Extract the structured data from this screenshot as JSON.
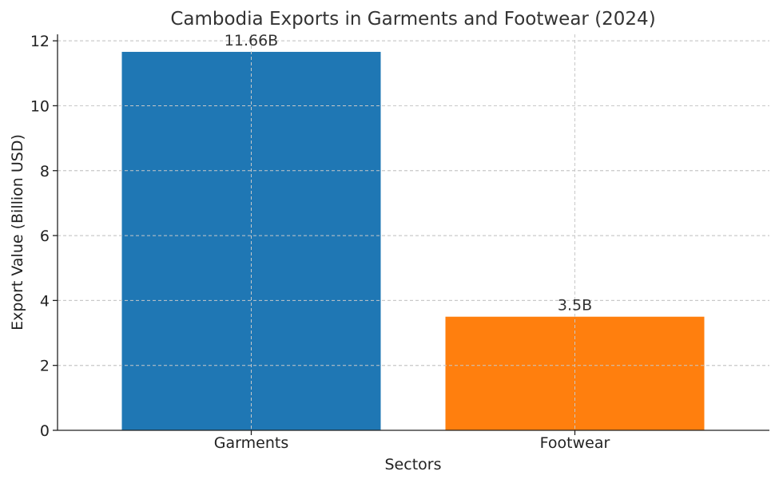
{
  "chart_data": {
    "type": "bar",
    "title": "Cambodia Exports in Garments and Footwear (2024)",
    "xlabel": "Sectors",
    "ylabel": "Export Value (Billion USD)",
    "categories": [
      "Garments",
      "Footwear"
    ],
    "values": [
      11.66,
      3.5
    ],
    "data_labels": [
      "11.66B",
      "3.5B"
    ],
    "bar_colors": [
      "#1f77b4",
      "#ff7f0e"
    ],
    "ylim": [
      0,
      12.2
    ],
    "yticks": [
      0,
      2,
      4,
      6,
      8,
      10,
      12
    ],
    "ytick_labels": [
      "0",
      "2",
      "4",
      "6",
      "8",
      "10",
      "12"
    ],
    "grid": true,
    "legend": "none"
  }
}
